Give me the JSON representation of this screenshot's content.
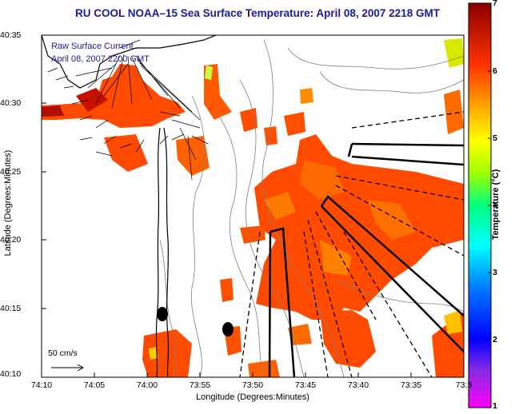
{
  "title": "RU COOL  NOAA–15  Sea Surface Temperature:  April 08, 2007 2218 GMT",
  "legend": {
    "line1": "Raw Surface Current",
    "line2": "April 08, 2007 2200 GMT"
  },
  "scale_label": "50 cm/s",
  "axes": {
    "xlabel": "Longitude (Degrees:Minutes)",
    "ylabel": "Latitude (Degrees:Minutes)",
    "xticks": [
      "74:10",
      "74:05",
      "74:00",
      "73:55",
      "73:50",
      "73:45",
      "73:40",
      "73:35",
      "73:3"
    ],
    "yticks": [
      "40:35",
      "40:30",
      "40:25",
      "40:20",
      "40:15",
      "40:10"
    ]
  },
  "colorbar": {
    "label": "Temperature (°C)",
    "ticks": [
      "7",
      "6",
      "5",
      "4",
      "3",
      "2",
      "1"
    ],
    "range": [
      1,
      7
    ]
  },
  "colors": {
    "title": "#1a1a9c",
    "sst_warm": "#ff4400",
    "sst_hot": "#b80000"
  }
}
